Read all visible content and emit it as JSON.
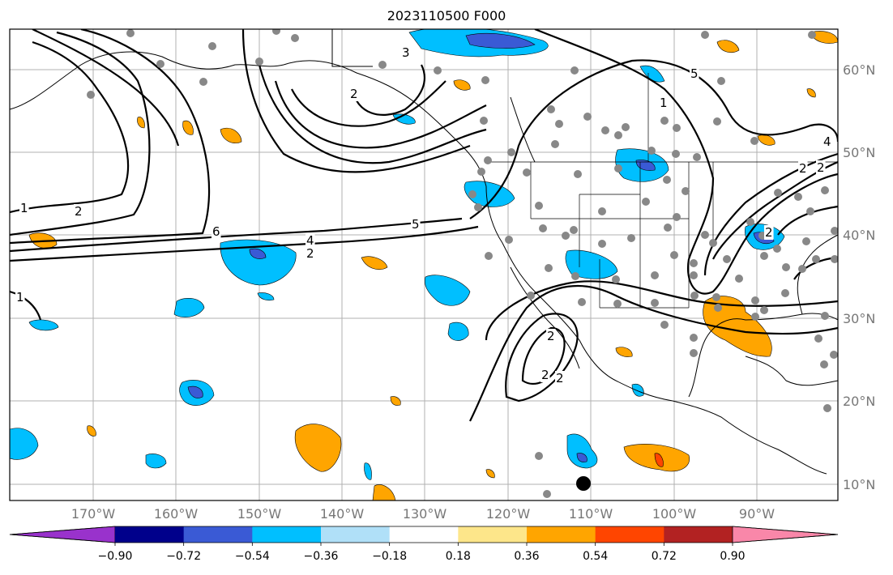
{
  "title": "2023110500 F000",
  "lon_labels": [
    "170°W",
    "160°W",
    "150°W",
    "140°W",
    "130°W",
    "120°W",
    "110°W",
    "100°W",
    "90°W"
  ],
  "lat_labels": [
    "10°N",
    "20°N",
    "30°N",
    "40°N",
    "50°N",
    "60°N"
  ],
  "contour_labels": [
    "1",
    "2",
    "6",
    "4",
    "2",
    "5",
    "2",
    "3",
    "5",
    "1",
    "2",
    "1",
    "2",
    "2",
    "2",
    "2",
    "2",
    "4"
  ],
  "colorbar": {
    "colors": [
      "#9932cc",
      "#00008b",
      "#3a5ad5",
      "#00bfff",
      "#b0e0f8",
      "#ffffff",
      "#fde68a",
      "#ffa500",
      "#ff4500",
      "#b22222",
      "#f987a9"
    ],
    "tick_labels": [
      "−0.90",
      "−0.72",
      "−0.54",
      "−0.36",
      "−0.18",
      "0.18",
      "0.36",
      "0.54",
      "0.72",
      "0.90"
    ]
  }
}
